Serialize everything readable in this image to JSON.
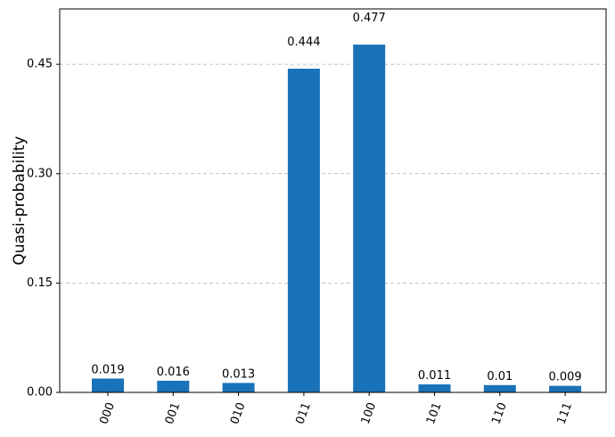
{
  "chart_data": {
    "type": "bar",
    "y_label": "Quasi-probability",
    "categories": [
      "000",
      "001",
      "010",
      "011",
      "100",
      "101",
      "110",
      "111"
    ],
    "values": [
      0.019,
      0.016,
      0.013,
      0.444,
      0.477,
      0.011,
      0.01,
      0.009
    ],
    "color": "#1a72b8",
    "ylim": [
      0,
      0.526
    ],
    "yticks": [
      {
        "value": 0,
        "label": "0.00"
      },
      0.15,
      {
        "value": 0.3,
        "label": "0.30"
      },
      0.45
    ],
    "grid": true
  }
}
